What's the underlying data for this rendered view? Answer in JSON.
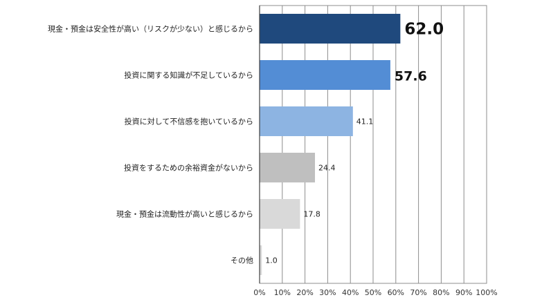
{
  "chart_data": {
    "type": "bar",
    "orientation": "horizontal",
    "categories": [
      "現金・預金は安全性が高い（リスクが少ない）と感じるから",
      "投資に関する知識が不足しているから",
      "投資に対して不信感を抱いているから",
      "投資をするための余裕資金がないから",
      "現金・預金は流動性が高いと感じるから",
      "その他"
    ],
    "values": [
      62.0,
      57.6,
      41.1,
      24.4,
      17.8,
      1.0
    ],
    "value_labels": [
      "62.0",
      "57.6",
      "41.1",
      "24.4",
      "17.8",
      "1.0"
    ],
    "bar_colors": [
      "#1f497d",
      "#538dd5",
      "#8db4e2",
      "#bfbfbf",
      "#d9d9d9",
      "#d9d9d9"
    ],
    "emphasized_labels": [
      true,
      true,
      false,
      false,
      false,
      false
    ],
    "xlim": [
      0,
      100
    ],
    "x_ticks": [
      "0%",
      "10%",
      "20%",
      "30%",
      "40%",
      "50%",
      "60%",
      "70%",
      "80%",
      "90%",
      "100%"
    ],
    "grid": true,
    "title": "",
    "xlabel": "",
    "ylabel": ""
  }
}
